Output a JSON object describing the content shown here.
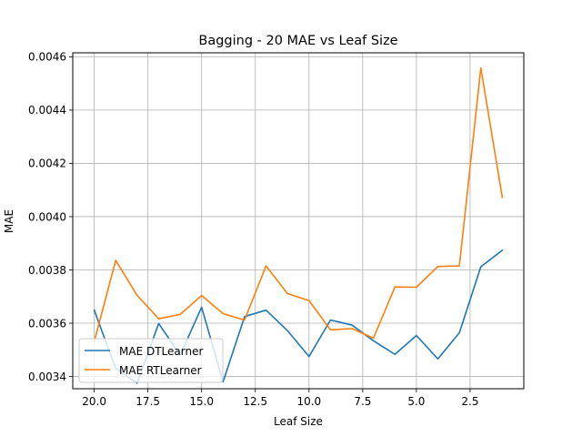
{
  "chart_data": {
    "type": "line",
    "title": "Bagging - 20 MAE vs Leaf Size",
    "xlabel": "Leaf Size",
    "ylabel": "MAE",
    "x_inverted": true,
    "xlim": [
      21.0,
      0.0
    ],
    "ylim": [
      0.003354,
      0.004615
    ],
    "xticks": [
      20.0,
      17.5,
      15.0,
      12.5,
      10.0,
      7.5,
      5.0,
      2.5
    ],
    "xtick_labels": [
      "20.0",
      "17.5",
      "15.0",
      "12.5",
      "10.0",
      "7.5",
      "5.0",
      "2.5"
    ],
    "yticks": [
      0.0034,
      0.0036,
      0.0038,
      0.004,
      0.0042,
      0.0044,
      0.0046
    ],
    "ytick_labels": [
      "0.0034",
      "0.0036",
      "0.0038",
      "0.0040",
      "0.0042",
      "0.0044",
      "0.0046"
    ],
    "grid": true,
    "legend_position": "lower-left",
    "x": [
      20,
      19,
      18,
      17,
      16,
      15,
      14,
      13,
      12,
      11,
      10,
      9,
      8,
      7,
      6,
      5,
      4,
      3,
      2,
      1
    ],
    "series": [
      {
        "name": "MAE DTLearner",
        "color": "#1f77b4",
        "values": [
          0.003649,
          0.00343,
          0.003375,
          0.003599,
          0.00348,
          0.00366,
          0.00338,
          0.003625,
          0.003649,
          0.003572,
          0.003475,
          0.003612,
          0.003593,
          0.003534,
          0.003483,
          0.003554,
          0.003466,
          0.003564,
          0.003812,
          0.003874
        ]
      },
      {
        "name": "MAE RTLearner",
        "color": "#ff7f0e",
        "values": [
          0.003531,
          0.003836,
          0.003704,
          0.003617,
          0.003633,
          0.003704,
          0.003636,
          0.003612,
          0.003815,
          0.003711,
          0.003685,
          0.003575,
          0.00358,
          0.003544,
          0.003736,
          0.003735,
          0.003813,
          0.003815,
          0.004558,
          0.004072
        ]
      }
    ]
  }
}
